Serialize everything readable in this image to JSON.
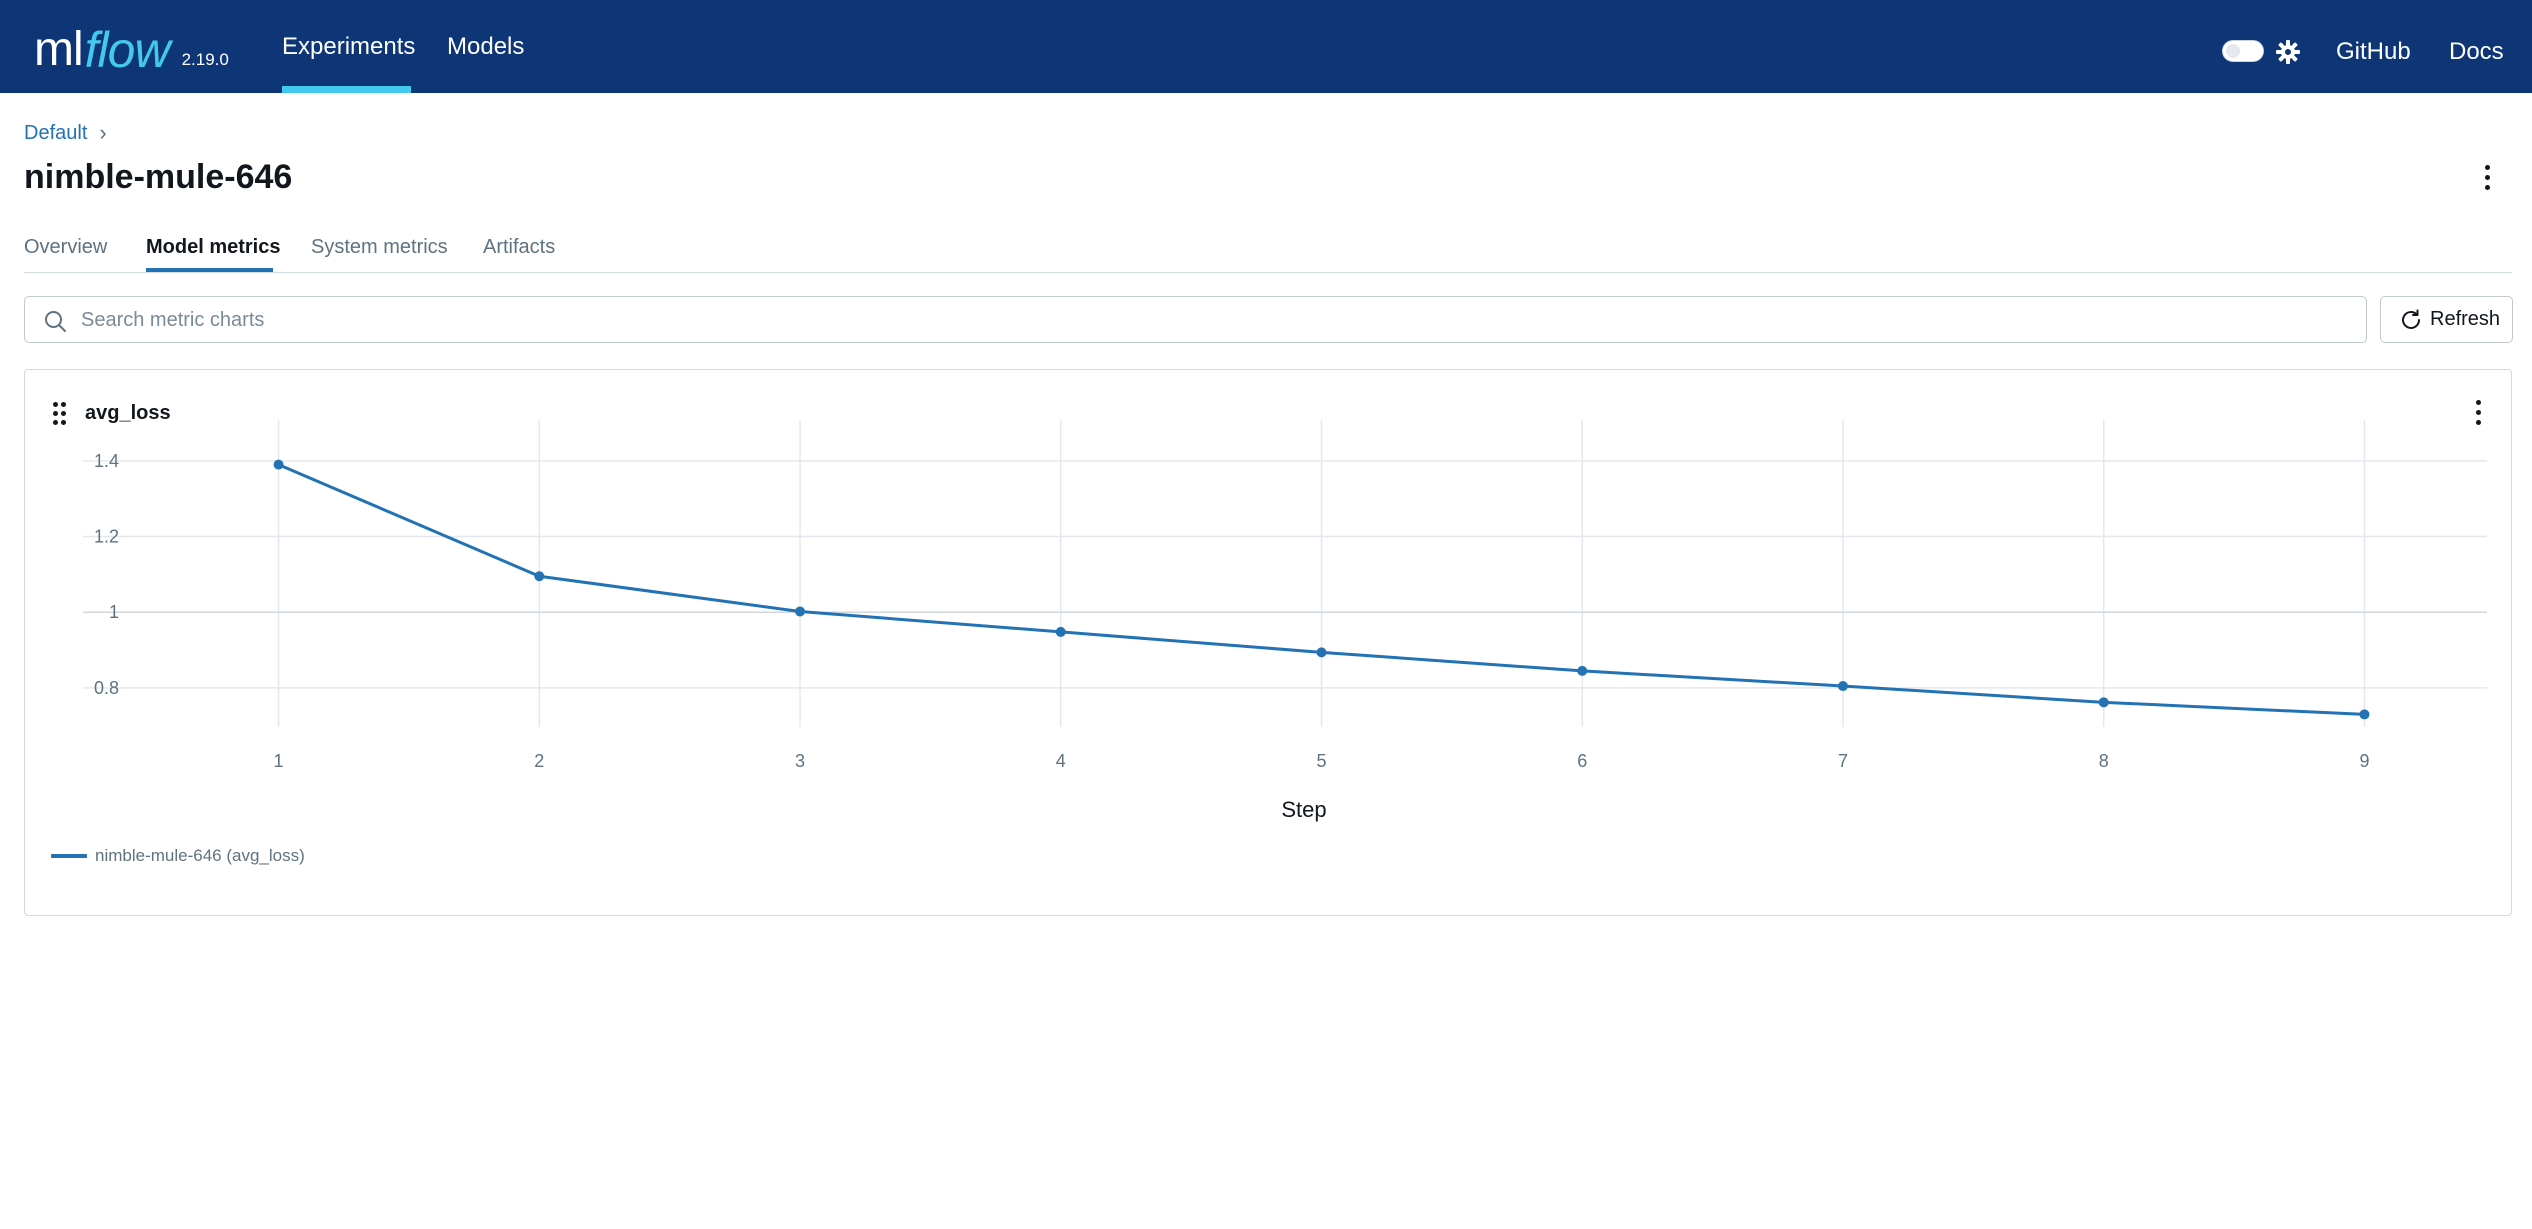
{
  "nav": {
    "logo_ml": "ml",
    "logo_flow": "flow",
    "version": "2.19.0",
    "links": {
      "experiments": "Experiments",
      "models": "Models"
    },
    "right_links": {
      "github": "GitHub",
      "docs": "Docs"
    },
    "theme_icon": "gear-icon",
    "colors": {
      "bar": "#0e3677",
      "accent": "#43c9ed"
    }
  },
  "breadcrumb": {
    "parent": "Default",
    "separator": "›"
  },
  "run": {
    "name": "nimble-mule-646"
  },
  "tabs": [
    {
      "label": "Overview",
      "active": false
    },
    {
      "label": "Model metrics",
      "active": true
    },
    {
      "label": "System metrics",
      "active": false
    },
    {
      "label": "Artifacts",
      "active": false
    }
  ],
  "search": {
    "placeholder": "Search metric charts",
    "value": ""
  },
  "refresh": {
    "label": "Refresh"
  },
  "chart_data": {
    "type": "line",
    "title": "avg_loss",
    "xlabel": "Step",
    "ylabel": "",
    "x": [
      1,
      2,
      3,
      4,
      5,
      6,
      7,
      8,
      9
    ],
    "series": [
      {
        "name": "nimble-mule-646 (avg_loss)",
        "color": "#2272b4",
        "values": [
          1.39,
          1.095,
          1.002,
          0.948,
          0.894,
          0.845,
          0.805,
          0.762,
          0.73
        ]
      }
    ],
    "xticks": [
      1,
      2,
      3,
      4,
      5,
      6,
      7,
      8,
      9
    ],
    "yticks": [
      0.8,
      1.0,
      1.2,
      1.4
    ],
    "ytick_labels": [
      "0.8",
      "1",
      "1.2",
      "1.4"
    ],
    "xlim": [
      0.25,
      9.47
    ],
    "ylim": [
      0.71,
      1.455
    ],
    "grid": true,
    "legend_position": "bottom-left"
  }
}
